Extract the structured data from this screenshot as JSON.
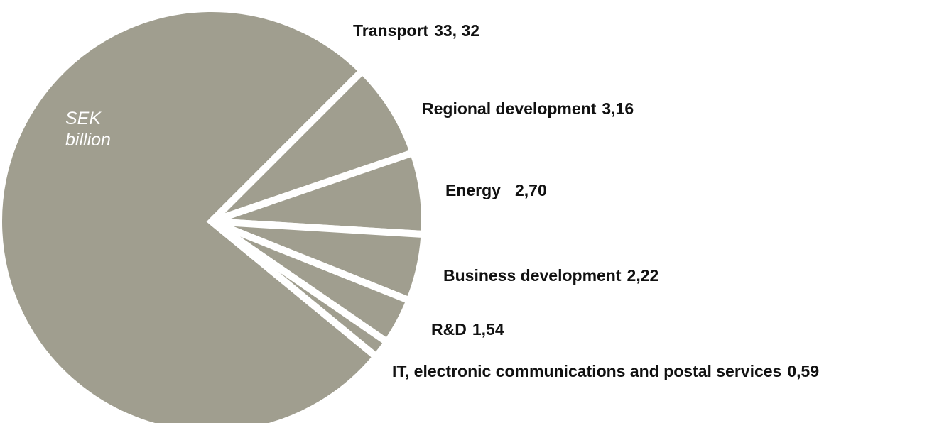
{
  "chart_data": {
    "type": "pie",
    "annotation": "SEK billion",
    "categories": [
      "Transport",
      "Regional development",
      "Energy",
      "Business development",
      "R&D",
      "IT, electronic communications and postal services"
    ],
    "values": [
      33.32,
      3.16,
      2.7,
      2.22,
      1.54,
      0.59
    ],
    "value_labels": [
      "33, 32",
      "3,16",
      "2,70",
      "2,22",
      "1,54",
      "0,59"
    ],
    "color": "#a09e8f"
  }
}
